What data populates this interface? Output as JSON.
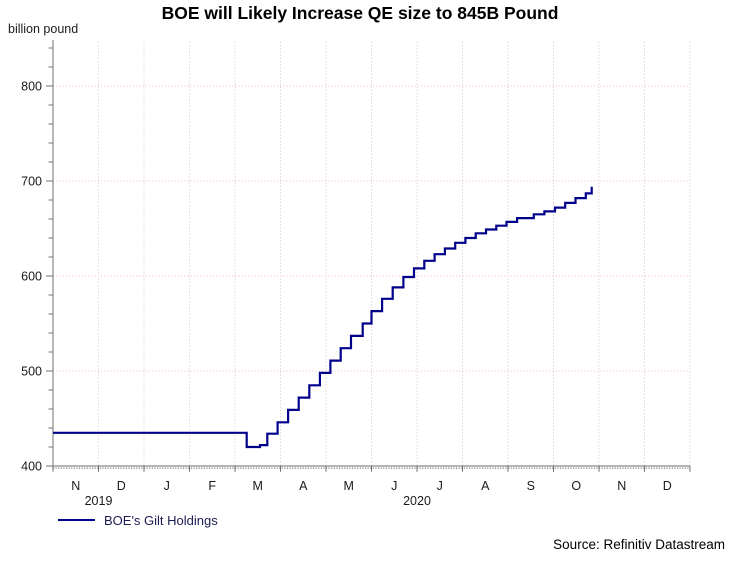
{
  "title": "BOE will Likely Increase QE size to 845B Pound",
  "y_axis_label": "billion pound",
  "source": "Source: Refinitiv Datastream",
  "legend": {
    "label": "BOE's Gilt Holdings"
  },
  "colors": {
    "line": "#00008b",
    "h_grid": "#f6bcbc",
    "v_grid": "#d9c6c6",
    "axis": "#8a8a8a",
    "tick": "#707070",
    "daily_ticks": "#a0a0a0",
    "text": "#1a1a1a"
  },
  "chart_data": {
    "type": "line",
    "step": true,
    "title": "BOE will Likely Increase QE size to 845B Pound",
    "xlabel": "",
    "ylabel": "billion pound",
    "ylim": [
      400,
      848
    ],
    "y_major_ticks": [
      400,
      500,
      600,
      700,
      800
    ],
    "y_minor_step": 20,
    "y_minor_max": 840,
    "grid": "dotted",
    "x_start_month": "2019-11",
    "x_month_count": 14,
    "month_tick_labels": [
      "N",
      "D",
      "J",
      "F",
      "M",
      "A",
      "M",
      "J",
      "J",
      "A",
      "S",
      "O",
      "N",
      "D"
    ],
    "year_labels": [
      {
        "text": "2019",
        "at_month_boundary": 1
      },
      {
        "text": "2020",
        "at_month_boundary": 8
      }
    ],
    "legend_position": "bottom-left",
    "series": [
      {
        "name": "BOE's Gilt Holdings",
        "color": "#00008b",
        "points": [
          [
            "2019-11-01",
            435
          ],
          [
            "2020-03-09",
            420
          ],
          [
            "2020-03-18",
            422
          ],
          [
            "2020-03-23",
            434
          ],
          [
            "2020-03-30",
            446
          ],
          [
            "2020-04-06",
            459
          ],
          [
            "2020-04-13",
            472
          ],
          [
            "2020-04-20",
            485
          ],
          [
            "2020-04-27",
            498
          ],
          [
            "2020-05-04",
            511
          ],
          [
            "2020-05-11",
            524
          ],
          [
            "2020-05-18",
            537
          ],
          [
            "2020-05-26",
            550
          ],
          [
            "2020-06-01",
            563
          ],
          [
            "2020-06-08",
            576
          ],
          [
            "2020-06-15",
            588
          ],
          [
            "2020-06-22",
            599
          ],
          [
            "2020-06-29",
            608
          ],
          [
            "2020-07-06",
            616
          ],
          [
            "2020-07-13",
            623
          ],
          [
            "2020-07-20",
            629
          ],
          [
            "2020-07-27",
            635
          ],
          [
            "2020-08-03",
            640
          ],
          [
            "2020-08-10",
            645
          ],
          [
            "2020-08-17",
            649
          ],
          [
            "2020-08-24",
            653
          ],
          [
            "2020-08-31",
            657
          ],
          [
            "2020-09-07",
            661
          ],
          [
            "2020-09-18",
            665
          ],
          [
            "2020-09-25",
            668
          ],
          [
            "2020-10-02",
            672
          ],
          [
            "2020-10-09",
            677
          ],
          [
            "2020-10-16",
            682
          ],
          [
            "2020-10-23",
            687
          ],
          [
            "2020-10-27",
            694
          ]
        ]
      }
    ]
  }
}
